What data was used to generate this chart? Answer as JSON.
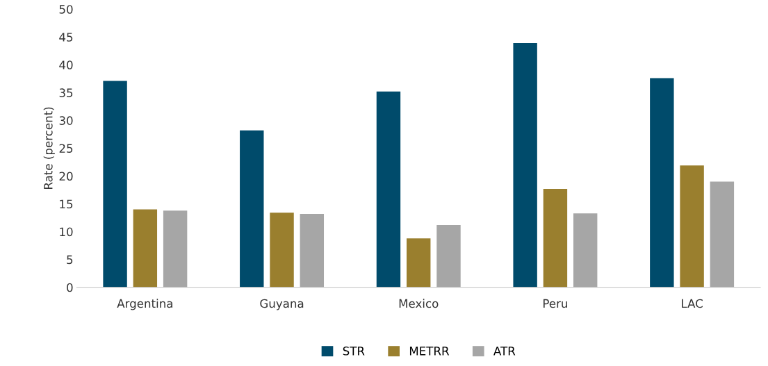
{
  "chart_data": {
    "type": "bar",
    "ylabel": "Rate (percent)",
    "categories": [
      "Argentina",
      "Guyana",
      "Mexico",
      "Peru",
      "LAC"
    ],
    "series": [
      {
        "name": "STR",
        "color": "#004b6b",
        "values": [
          37.1,
          28.2,
          35.2,
          43.9,
          37.6
        ]
      },
      {
        "name": "METRR",
        "color": "#9a7f2e",
        "values": [
          14.0,
          13.4,
          8.8,
          17.7,
          21.9
        ]
      },
      {
        "name": "ATR",
        "color": "#a6a6a6",
        "values": [
          13.8,
          13.2,
          11.2,
          13.3,
          19.0
        ]
      }
    ],
    "ylim": [
      0,
      50
    ],
    "yticks": [
      0,
      5,
      10,
      15,
      20,
      25,
      30,
      35,
      40,
      45,
      50
    ],
    "grid": false,
    "legend": "bottom"
  }
}
